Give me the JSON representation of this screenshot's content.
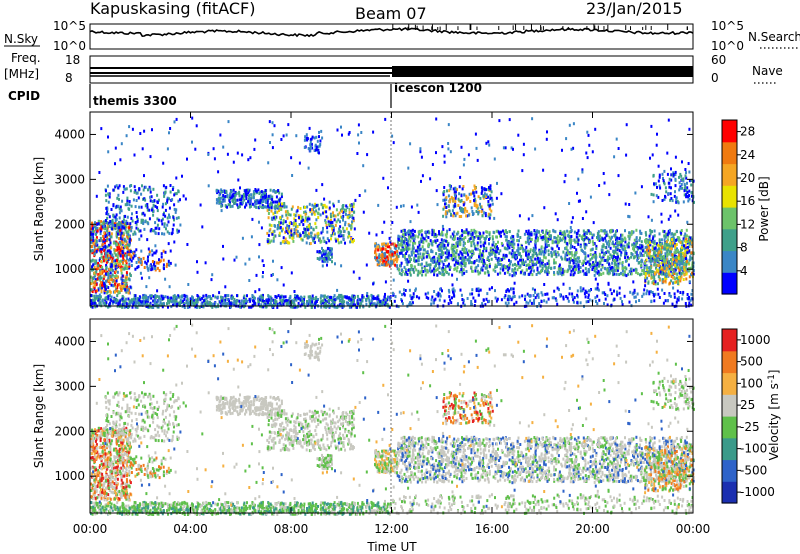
{
  "header": {
    "station": "Kapuskasing (fitACF)",
    "beam": "Beam 07",
    "date": "23/Jan/2015"
  },
  "left_labels": {
    "nsky": "N.Sky",
    "freq_line1": "Freq.",
    "freq_line2": "[MHz]",
    "cpid": "CPID"
  },
  "right_labels": {
    "nsearch": "N.Search",
    "nave": "Nave"
  },
  "cpid": [
    {
      "name": "themis 3300",
      "start_hour": 0
    },
    {
      "name": "icescon 1200",
      "start_hour": 12
    }
  ],
  "chart_data": [
    {
      "type": "line",
      "panel": "noise",
      "y_ticks_left": [
        "10^5",
        "10^0"
      ],
      "y_ticks_right": [
        "10^5",
        "10^0"
      ]
    },
    {
      "type": "line",
      "panel": "frequency",
      "y_ticks_left": [
        "18",
        "8"
      ],
      "y_ticks_right": [
        "60",
        "0"
      ],
      "freq_lines_mhz": [
        10.2,
        9.0,
        8.6
      ],
      "nave_change_hour": 12
    },
    {
      "type": "heatmap",
      "panel": "power",
      "ylabel": "Slant Range [km]",
      "ylim": [
        180,
        4500
      ],
      "yticks": [
        1000,
        2000,
        3000,
        4000
      ],
      "xlim": [
        0,
        24
      ],
      "colorbar": {
        "label": "Power [dB]",
        "ticks": [
          4,
          8,
          12,
          16,
          20,
          24,
          28
        ],
        "range": [
          0,
          30
        ],
        "colors": [
          "#0000ff",
          "#3a86c6",
          "#3fa08a",
          "#6cc36a",
          "#e8e200",
          "#f5a623",
          "#f07a10",
          "#ff0000"
        ]
      }
    },
    {
      "type": "heatmap",
      "panel": "velocity",
      "ylabel": "Slant Range [km]",
      "ylim": [
        180,
        4500
      ],
      "yticks": [
        1000,
        2000,
        3000,
        4000
      ],
      "xlim": [
        0,
        24
      ],
      "xticks": [
        "00:00",
        "04:00",
        "08:00",
        "12:00",
        "16:00",
        "20:00",
        "00:00"
      ],
      "xlabel": "Time UT",
      "colorbar": {
        "label": "Velocity [m s^-1]",
        "ticks": [
          "1000",
          "500",
          "100",
          "25",
          "-25",
          "-100",
          "-500",
          "-1000"
        ],
        "colors": [
          "#1b2fb0",
          "#2e63c9",
          "#3a9a8a",
          "#5fc04a",
          "#c8c8c0",
          "#f5b042",
          "#f07a20",
          "#e52020"
        ]
      }
    }
  ]
}
